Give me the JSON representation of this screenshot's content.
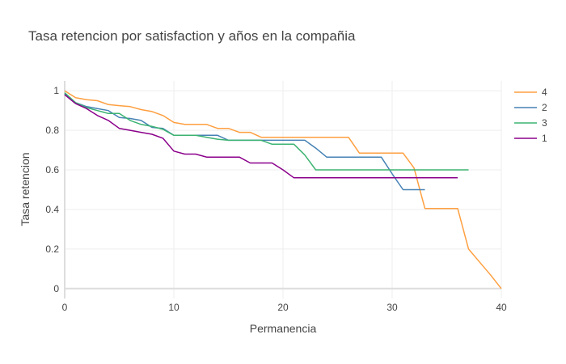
{
  "chart_data": {
    "type": "line",
    "line_shape": "step",
    "title": "Tasa retencion por satisfaction y años en la compañia",
    "xlabel": "Permanencia",
    "ylabel": "Tasa retencion",
    "xlim": [
      0,
      40
    ],
    "ylim": [
      -0.05,
      1.05
    ],
    "x_ticks": [
      0,
      10,
      20,
      30,
      40
    ],
    "y_ticks": [
      0,
      0.2,
      0.4,
      0.6,
      0.8,
      1
    ],
    "x_tick_labels": [
      "0",
      "10",
      "20",
      "30",
      "40"
    ],
    "y_tick_labels": [
      "0",
      "0.2",
      "0.4",
      "0.6",
      "0.8",
      "1"
    ],
    "grid": true,
    "legend_position": "top-right",
    "series": [
      {
        "name": "4",
        "color": "#ff9f40",
        "x": [
          0,
          1,
          2,
          3,
          4,
          5,
          6,
          7,
          8,
          9,
          10,
          11,
          12,
          13,
          14,
          15,
          16,
          17,
          18,
          19,
          20,
          21,
          22,
          23,
          24,
          25,
          26,
          27,
          28,
          29,
          30,
          31,
          32,
          33,
          34,
          35,
          36,
          37,
          38,
          39,
          40
        ],
        "y": [
          1.0,
          0.965,
          0.955,
          0.95,
          0.93,
          0.925,
          0.92,
          0.905,
          0.895,
          0.875,
          0.84,
          0.83,
          0.83,
          0.83,
          0.81,
          0.81,
          0.79,
          0.79,
          0.765,
          0.765,
          0.765,
          0.765,
          0.765,
          0.765,
          0.765,
          0.765,
          0.765,
          0.685,
          0.685,
          0.685,
          0.685,
          0.685,
          0.61,
          0.405,
          0.405,
          0.405,
          0.405,
          0.2,
          0.135,
          0.07,
          0.0
        ]
      },
      {
        "name": "2",
        "color": "#4682b4",
        "x": [
          0,
          1,
          2,
          3,
          4,
          5,
          6,
          7,
          8,
          9,
          10,
          11,
          12,
          13,
          14,
          15,
          16,
          17,
          18,
          19,
          20,
          21,
          22,
          23,
          24,
          25,
          26,
          27,
          28,
          29,
          30,
          31,
          32,
          33
        ],
        "y": [
          0.985,
          0.94,
          0.92,
          0.91,
          0.9,
          0.865,
          0.86,
          0.85,
          0.815,
          0.81,
          0.775,
          0.775,
          0.775,
          0.775,
          0.775,
          0.75,
          0.75,
          0.75,
          0.75,
          0.75,
          0.75,
          0.75,
          0.75,
          0.71,
          0.665,
          0.665,
          0.665,
          0.665,
          0.665,
          0.665,
          0.58,
          0.5,
          0.5,
          0.5
        ]
      },
      {
        "name": "3",
        "color": "#3cb371",
        "x": [
          0,
          1,
          2,
          3,
          4,
          5,
          6,
          7,
          8,
          9,
          10,
          11,
          12,
          13,
          14,
          15,
          16,
          17,
          18,
          19,
          20,
          21,
          22,
          23,
          24,
          25,
          26,
          27,
          28,
          29,
          30,
          31,
          32,
          33,
          34,
          35,
          36,
          37
        ],
        "y": [
          0.99,
          0.94,
          0.915,
          0.9,
          0.885,
          0.885,
          0.85,
          0.83,
          0.82,
          0.805,
          0.775,
          0.775,
          0.775,
          0.765,
          0.755,
          0.75,
          0.75,
          0.75,
          0.75,
          0.73,
          0.73,
          0.73,
          0.675,
          0.6,
          0.6,
          0.6,
          0.6,
          0.6,
          0.6,
          0.6,
          0.6,
          0.6,
          0.6,
          0.6,
          0.6,
          0.6,
          0.6,
          0.6
        ]
      },
      {
        "name": "1",
        "color": "#8b008b",
        "x": [
          0,
          1,
          2,
          3,
          4,
          5,
          6,
          7,
          8,
          9,
          10,
          11,
          12,
          13,
          14,
          15,
          16,
          17,
          18,
          19,
          20,
          21,
          22,
          23,
          24,
          25,
          26,
          27,
          28,
          29,
          30,
          31,
          32,
          33,
          34,
          35,
          36
        ],
        "y": [
          0.98,
          0.935,
          0.91,
          0.875,
          0.85,
          0.81,
          0.8,
          0.79,
          0.78,
          0.76,
          0.695,
          0.68,
          0.68,
          0.665,
          0.665,
          0.665,
          0.665,
          0.635,
          0.635,
          0.635,
          0.6,
          0.56,
          0.56,
          0.56,
          0.56,
          0.56,
          0.56,
          0.56,
          0.56,
          0.56,
          0.56,
          0.56,
          0.56,
          0.56,
          0.56,
          0.56,
          0.56
        ]
      }
    ]
  }
}
